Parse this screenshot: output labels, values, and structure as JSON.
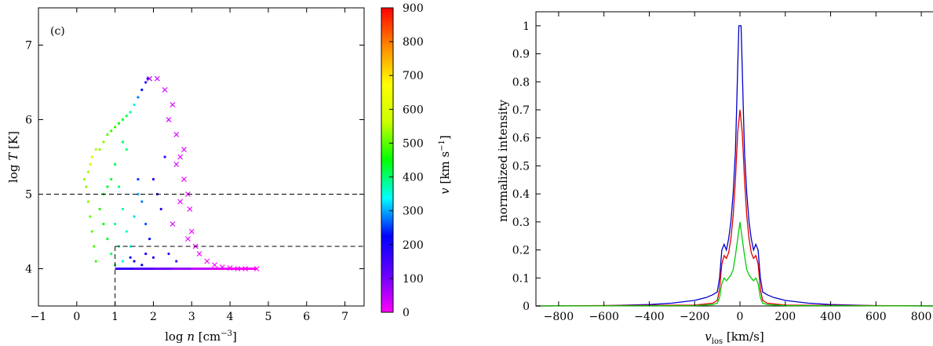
{
  "chart_data": [
    {
      "type": "scatter",
      "panel_label": "(c)",
      "xlabel_pre": "log",
      "xlabel_var": "n",
      "xlabel_unit_open": "[cm",
      "xlabel_unit_exp": "−3",
      "xlabel_unit_close": "]",
      "ylabel_pre": "log",
      "ylabel_var": "T",
      "ylabel_unit": "[K]",
      "xlim": [
        -1,
        7.5
      ],
      "ylim": [
        3.5,
        7.5
      ],
      "xticks": [
        "−1",
        "0",
        "1",
        "2",
        "3",
        "4",
        "5",
        "6",
        "7"
      ],
      "xtick_values": [
        -1,
        0,
        1,
        2,
        3,
        4,
        5,
        6,
        7
      ],
      "yticks": [
        "4",
        "5",
        "6",
        "7"
      ],
      "ytick_values": [
        4,
        5,
        6,
        7
      ],
      "colorbar": {
        "label_var": "v",
        "label_unit_open": "[km s",
        "label_unit_exp": "−1",
        "label_unit_close": "]",
        "range": [
          0,
          900
        ],
        "ticks": [
          "0",
          "100",
          "200",
          "300",
          "400",
          "500",
          "600",
          "700",
          "800",
          "900"
        ],
        "tick_values": [
          0,
          100,
          200,
          300,
          400,
          500,
          600,
          700,
          800,
          900
        ],
        "colormap": [
          "#ff00ff",
          "#6600ff",
          "#0000ff",
          "#00ffff",
          "#00ff00",
          "#ccff00",
          "#ffff00",
          "#ff8800",
          "#ff0000"
        ]
      },
      "dashed_lines": {
        "horizontal_full_y": 5.0,
        "box_x_min": 1.0,
        "box_y_max": 4.3
      },
      "series": [
        {
          "marker": "dot",
          "points": [
            [
              0.2,
              5.2,
              530
            ],
            [
              0.25,
              5.1,
              520
            ],
            [
              0.3,
              5.3,
              540
            ],
            [
              0.35,
              5.4,
              560
            ],
            [
              0.4,
              5.5,
              570
            ],
            [
              0.5,
              5.6,
              550
            ],
            [
              0.6,
              5.6,
              530
            ],
            [
              0.7,
              5.7,
              520
            ],
            [
              0.8,
              5.8,
              500
            ],
            [
              0.9,
              5.85,
              480
            ],
            [
              1.0,
              5.9,
              470
            ],
            [
              1.1,
              5.95,
              450
            ],
            [
              1.2,
              6.0,
              430
            ],
            [
              1.3,
              6.05,
              410
            ],
            [
              1.4,
              6.1,
              380
            ],
            [
              1.5,
              6.2,
              330
            ],
            [
              1.6,
              6.3,
              280
            ],
            [
              1.7,
              6.4,
              230
            ],
            [
              1.8,
              6.5,
              180
            ],
            [
              1.85,
              6.55,
              140
            ],
            [
              0.3,
              4.9,
              520
            ],
            [
              0.35,
              4.7,
              510
            ],
            [
              0.4,
              4.5,
              500
            ],
            [
              0.45,
              4.3,
              490
            ],
            [
              0.5,
              4.1,
              480
            ],
            [
              0.6,
              4.8,
              470
            ],
            [
              0.7,
              4.6,
              450
            ],
            [
              0.8,
              4.4,
              430
            ],
            [
              0.9,
              4.2,
              410
            ],
            [
              1.0,
              4.05,
              400
            ],
            [
              0.7,
              5.0,
              450
            ],
            [
              0.8,
              5.1,
              440
            ],
            [
              0.9,
              5.2,
              430
            ],
            [
              1.0,
              5.4,
              420
            ],
            [
              1.1,
              5.1,
              400
            ],
            [
              1.2,
              4.8,
              380
            ],
            [
              1.3,
              4.5,
              360
            ],
            [
              1.4,
              4.3,
              340
            ],
            [
              1.5,
              4.7,
              320
            ],
            [
              1.6,
              5.0,
              300
            ],
            [
              1.7,
              4.9,
              280
            ],
            [
              1.8,
              4.6,
              260
            ],
            [
              1.9,
              4.4,
              230
            ],
            [
              2.0,
              5.2,
              200
            ],
            [
              2.1,
              5.0,
              180
            ],
            [
              2.2,
              4.8,
              190
            ],
            [
              2.4,
              4.2,
              170
            ],
            [
              2.6,
              4.1,
              150
            ],
            [
              2.3,
              5.5,
              160
            ],
            [
              1.6,
              5.2,
              250
            ],
            [
              1.2,
              5.7,
              410
            ],
            [
              1.3,
              5.6,
              400
            ],
            [
              1.0,
              4.6,
              390
            ],
            [
              1.1,
              4.3,
              370
            ],
            [
              1.5,
              4.1,
              210
            ],
            [
              1.8,
              4.2,
              200
            ],
            [
              2.0,
              4.15,
              190
            ],
            [
              1.7,
              4.05,
              220
            ],
            [
              1.4,
              4.15,
              230
            ],
            [
              1.2,
              4.1,
              330
            ]
          ]
        },
        {
          "marker": "cross",
          "points": [
            [
              1.9,
              6.55,
              70
            ],
            [
              2.1,
              6.55,
              50
            ],
            [
              2.3,
              6.4,
              40
            ],
            [
              2.5,
              6.2,
              30
            ],
            [
              2.4,
              6.0,
              40
            ],
            [
              2.6,
              5.8,
              30
            ],
            [
              2.7,
              5.5,
              25
            ],
            [
              2.8,
              5.2,
              20
            ],
            [
              2.9,
              5.0,
              20
            ],
            [
              2.95,
              4.8,
              15
            ],
            [
              3.0,
              4.5,
              15
            ],
            [
              3.1,
              4.3,
              10
            ],
            [
              3.2,
              4.2,
              10
            ],
            [
              3.4,
              4.1,
              5
            ],
            [
              3.6,
              4.05,
              5
            ],
            [
              3.8,
              4.02,
              5
            ],
            [
              4.0,
              4.01,
              3
            ],
            [
              4.2,
              4.0,
              2
            ],
            [
              4.4,
              4.0,
              1
            ],
            [
              4.7,
              4.0,
              0
            ],
            [
              2.8,
              5.6,
              25
            ],
            [
              2.6,
              5.4,
              30
            ],
            [
              2.7,
              4.9,
              20
            ],
            [
              2.5,
              4.6,
              25
            ],
            [
              2.9,
              4.4,
              15
            ]
          ]
        },
        {
          "marker": "band",
          "points": [
            [
              1.0,
              4.0,
              180
            ],
            [
              1.5,
              4.0,
              150
            ],
            [
              2.0,
              4.0,
              120
            ],
            [
              2.5,
              4.0,
              90
            ],
            [
              3.0,
              4.0,
              60
            ],
            [
              3.5,
              4.0,
              30
            ],
            [
              4.0,
              4.0,
              10
            ],
            [
              4.7,
              4.0,
              0
            ]
          ]
        }
      ]
    },
    {
      "type": "line",
      "xlabel_var": "v",
      "xlabel_sub": "los",
      "xlabel_unit": "[km/s]",
      "ylabel": "normalized intensity",
      "xlim": [
        -900,
        900
      ],
      "ylim": [
        0,
        1.05
      ],
      "xticks": [
        "−800",
        "−600",
        "−400",
        "−200",
        "0",
        "200",
        "400",
        "600",
        "800"
      ],
      "xtick_values": [
        -800,
        -600,
        -400,
        -200,
        0,
        200,
        400,
        600,
        800
      ],
      "yticks": [
        "0",
        "0.1",
        "0.2",
        "0.3",
        "0.4",
        "0.5",
        "0.6",
        "0.7",
        "0.8",
        "0.9",
        "1"
      ],
      "ytick_values": [
        0,
        0.1,
        0.2,
        0.3,
        0.4,
        0.5,
        0.6,
        0.7,
        0.8,
        0.9,
        1.0
      ],
      "series": [
        {
          "color": "#0000cc",
          "x": [
            -900,
            -600,
            -400,
            -300,
            -200,
            -150,
            -120,
            -100,
            -90,
            -80,
            -70,
            -60,
            -50,
            -40,
            -30,
            -20,
            -15,
            -10,
            -5,
            0,
            5,
            10,
            15,
            20,
            30,
            40,
            50,
            60,
            70,
            80,
            90,
            100,
            120,
            150,
            200,
            300,
            400,
            600,
            900
          ],
          "y": [
            0,
            0.001,
            0.005,
            0.01,
            0.02,
            0.03,
            0.04,
            0.05,
            0.1,
            0.2,
            0.22,
            0.2,
            0.24,
            0.3,
            0.4,
            0.55,
            0.7,
            0.85,
            1.0,
            1.0,
            1.0,
            0.85,
            0.7,
            0.55,
            0.4,
            0.3,
            0.24,
            0.2,
            0.22,
            0.2,
            0.1,
            0.05,
            0.04,
            0.03,
            0.02,
            0.01,
            0.005,
            0.001,
            0
          ]
        },
        {
          "color": "#dd0000",
          "x": [
            -900,
            -200,
            -120,
            -100,
            -90,
            -80,
            -70,
            -60,
            -50,
            -40,
            -30,
            -20,
            -10,
            0,
            10,
            20,
            30,
            40,
            50,
            60,
            70,
            80,
            90,
            100,
            120,
            200,
            900
          ],
          "y": [
            0,
            0.003,
            0.01,
            0.02,
            0.06,
            0.15,
            0.18,
            0.17,
            0.19,
            0.24,
            0.32,
            0.45,
            0.62,
            0.7,
            0.62,
            0.45,
            0.32,
            0.24,
            0.19,
            0.17,
            0.18,
            0.15,
            0.06,
            0.02,
            0.01,
            0.003,
            0
          ]
        },
        {
          "color": "#00cc00",
          "x": [
            -900,
            -200,
            -120,
            -100,
            -90,
            -80,
            -70,
            -60,
            -50,
            -40,
            -30,
            -20,
            -10,
            0,
            10,
            20,
            30,
            40,
            50,
            60,
            70,
            80,
            90,
            100,
            120,
            200,
            900
          ],
          "y": [
            0,
            0.001,
            0.005,
            0.01,
            0.03,
            0.08,
            0.1,
            0.09,
            0.1,
            0.11,
            0.13,
            0.18,
            0.24,
            0.3,
            0.24,
            0.18,
            0.13,
            0.11,
            0.1,
            0.09,
            0.1,
            0.08,
            0.03,
            0.01,
            0.005,
            0.001,
            0
          ]
        }
      ]
    }
  ]
}
